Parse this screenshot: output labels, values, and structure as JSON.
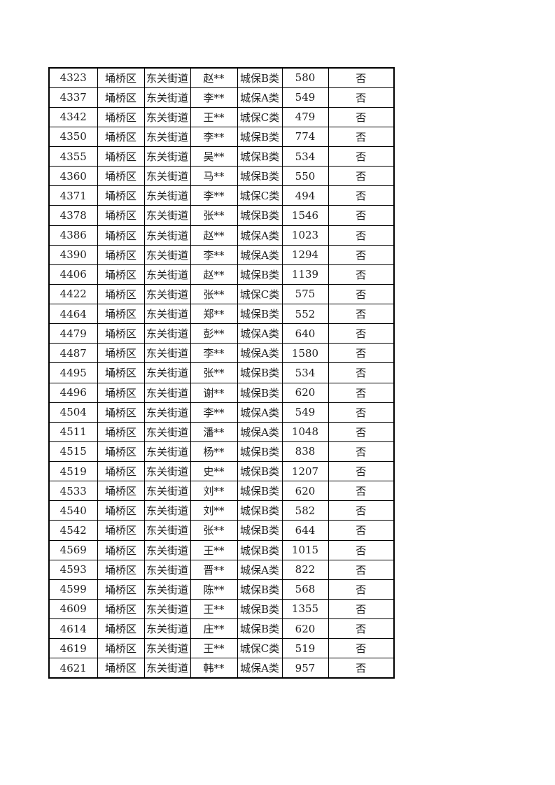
{
  "table": {
    "rows": [
      [
        "4323",
        "埇桥区",
        "东关街道",
        "赵**",
        "城保B类",
        "580",
        "否"
      ],
      [
        "4337",
        "埇桥区",
        "东关街道",
        "李**",
        "城保A类",
        "549",
        "否"
      ],
      [
        "4342",
        "埇桥区",
        "东关街道",
        "王**",
        "城保C类",
        "479",
        "否"
      ],
      [
        "4350",
        "埇桥区",
        "东关街道",
        "李**",
        "城保B类",
        "774",
        "否"
      ],
      [
        "4355",
        "埇桥区",
        "东关街道",
        "吴**",
        "城保B类",
        "534",
        "否"
      ],
      [
        "4360",
        "埇桥区",
        "东关街道",
        "马**",
        "城保B类",
        "550",
        "否"
      ],
      [
        "4371",
        "埇桥区",
        "东关街道",
        "李**",
        "城保C类",
        "494",
        "否"
      ],
      [
        "4378",
        "埇桥区",
        "东关街道",
        "张**",
        "城保B类",
        "1546",
        "否"
      ],
      [
        "4386",
        "埇桥区",
        "东关街道",
        "赵**",
        "城保A类",
        "1023",
        "否"
      ],
      [
        "4390",
        "埇桥区",
        "东关街道",
        "李**",
        "城保A类",
        "1294",
        "否"
      ],
      [
        "4406",
        "埇桥区",
        "东关街道",
        "赵**",
        "城保B类",
        "1139",
        "否"
      ],
      [
        "4422",
        "埇桥区",
        "东关街道",
        "张**",
        "城保C类",
        "575",
        "否"
      ],
      [
        "4464",
        "埇桥区",
        "东关街道",
        "郑**",
        "城保B类",
        "552",
        "否"
      ],
      [
        "4479",
        "埇桥区",
        "东关街道",
        "彭**",
        "城保A类",
        "640",
        "否"
      ],
      [
        "4487",
        "埇桥区",
        "东关街道",
        "李**",
        "城保A类",
        "1580",
        "否"
      ],
      [
        "4495",
        "埇桥区",
        "东关街道",
        "张**",
        "城保B类",
        "534",
        "否"
      ],
      [
        "4496",
        "埇桥区",
        "东关街道",
        "谢**",
        "城保B类",
        "620",
        "否"
      ],
      [
        "4504",
        "埇桥区",
        "东关街道",
        "李**",
        "城保A类",
        "549",
        "否"
      ],
      [
        "4511",
        "埇桥区",
        "东关街道",
        "潘**",
        "城保A类",
        "1048",
        "否"
      ],
      [
        "4515",
        "埇桥区",
        "东关街道",
        "杨**",
        "城保B类",
        "838",
        "否"
      ],
      [
        "4519",
        "埇桥区",
        "东关街道",
        "史**",
        "城保B类",
        "1207",
        "否"
      ],
      [
        "4533",
        "埇桥区",
        "东关街道",
        "刘**",
        "城保B类",
        "620",
        "否"
      ],
      [
        "4540",
        "埇桥区",
        "东关街道",
        "刘**",
        "城保B类",
        "582",
        "否"
      ],
      [
        "4542",
        "埇桥区",
        "东关街道",
        "张**",
        "城保B类",
        "644",
        "否"
      ],
      [
        "4569",
        "埇桥区",
        "东关街道",
        "王**",
        "城保B类",
        "1015",
        "否"
      ],
      [
        "4593",
        "埇桥区",
        "东关街道",
        "晋**",
        "城保A类",
        "822",
        "否"
      ],
      [
        "4599",
        "埇桥区",
        "东关街道",
        "陈**",
        "城保B类",
        "568",
        "否"
      ],
      [
        "4609",
        "埇桥区",
        "东关街道",
        "王**",
        "城保B类",
        "1355",
        "否"
      ],
      [
        "4614",
        "埇桥区",
        "东关街道",
        "庄**",
        "城保B类",
        "620",
        "否"
      ],
      [
        "4619",
        "埇桥区",
        "东关街道",
        "王**",
        "城保C类",
        "519",
        "否"
      ],
      [
        "4621",
        "埇桥区",
        "东关街道",
        "韩**",
        "城保A类",
        "957",
        "否"
      ]
    ]
  }
}
